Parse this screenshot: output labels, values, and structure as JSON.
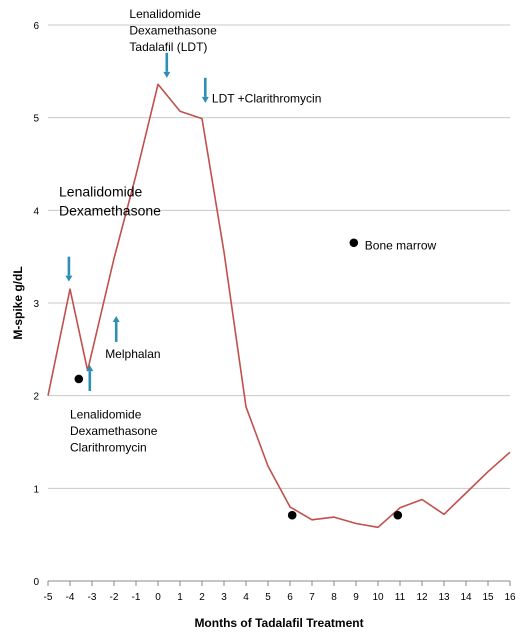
{
  "chart_data": {
    "type": "line",
    "title": "",
    "xlabel": "Months of Tadalafil Treatment",
    "ylabel": "M-spike g/dL",
    "xlim": [
      -5,
      16
    ],
    "ylim": [
      0,
      6
    ],
    "grid": "horizontal",
    "x_ticks": [
      "-5",
      "-4",
      "-3",
      "-2",
      "-1",
      "0",
      "1",
      "2",
      "3",
      "4",
      "5",
      "6",
      "7",
      "8",
      "9",
      "10",
      "11",
      "12",
      "13",
      "14",
      "15",
      "16"
    ],
    "y_ticks": [
      "0",
      "1",
      "2",
      "3",
      "4",
      "5",
      "6"
    ],
    "series": [
      {
        "color": "#c0504d",
        "x": [
          -5,
          -4,
          -3.2,
          -2,
          -1,
          0,
          1,
          2,
          3,
          4,
          5,
          6,
          7,
          8,
          9,
          10,
          11,
          12,
          13,
          14,
          15,
          16
        ],
        "y": [
          2.0,
          3.15,
          2.27,
          3.48,
          4.38,
          5.36,
          5.07,
          4.99,
          3.55,
          1.88,
          1.24,
          0.8,
          0.66,
          0.69,
          0.62,
          0.58,
          0.79,
          0.88,
          0.72,
          0.95,
          1.18,
          1.39
        ]
      }
    ],
    "markers": [
      {
        "x": -3.6,
        "y": 2.18
      },
      {
        "x": 6.1,
        "y": 0.71
      },
      {
        "x": 8.9,
        "y": 3.65
      },
      {
        "x": 10.9,
        "y": 0.71
      }
    ],
    "arrows": [
      {
        "x": -4.05,
        "y_from": 3.5,
        "y_to": 3.23,
        "direction": "down"
      },
      {
        "x": -3.1,
        "y_from": 2.05,
        "y_to": 2.33,
        "direction": "up"
      },
      {
        "x": -1.9,
        "y_from": 2.58,
        "y_to": 2.86,
        "direction": "up"
      },
      {
        "x": 0.4,
        "y_from": 5.7,
        "y_to": 5.43,
        "direction": "down"
      },
      {
        "x": 2.15,
        "y_from": 5.43,
        "y_to": 5.16,
        "direction": "down"
      }
    ],
    "annotations": [
      {
        "id": "lenalidomide-dexa",
        "lines": [
          "Lenalidomide",
          "Dexamethasone"
        ],
        "size": "large",
        "x": -4.5,
        "y": 4.2
      },
      {
        "id": "ldt",
        "lines": [
          "Lenalidomide",
          "Dexamethasone",
          "Tadalafil (LDT)"
        ],
        "size": "medium",
        "x": -1.3,
        "y": 6.12
      },
      {
        "id": "ldt-clarithro",
        "lines": [
          "LDT +Clarithromycin"
        ],
        "size": "medium",
        "x": 2.45,
        "y": 5.21
      },
      {
        "id": "bone-marrow",
        "lines": [
          "Bone marrow"
        ],
        "size": "medium",
        "x": 9.4,
        "y": 3.62
      },
      {
        "id": "melphalan",
        "lines": [
          "Melphalan"
        ],
        "size": "medium",
        "x": -2.4,
        "y": 2.45
      },
      {
        "id": "ldc",
        "lines": [
          "Lenalidomide",
          "Dexamethasone",
          "Clarithromycin"
        ],
        "size": "medium",
        "x": -4.0,
        "y": 1.8
      }
    ]
  }
}
